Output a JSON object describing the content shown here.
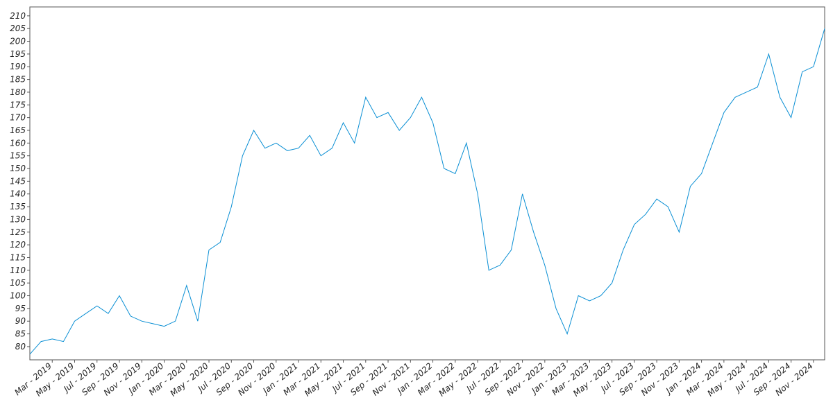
{
  "chart_data": {
    "type": "line",
    "color": "#0a8fd4",
    "x": [
      "2019-01",
      "2019-02",
      "2019-03",
      "2019-04",
      "2019-05",
      "2019-06",
      "2019-07",
      "2019-08",
      "2019-09",
      "2019-10",
      "2019-11",
      "2019-12",
      "2020-01",
      "2020-02",
      "2020-03",
      "2020-04",
      "2020-05",
      "2020-06",
      "2020-07",
      "2020-08",
      "2020-09",
      "2020-10",
      "2020-11",
      "2020-12",
      "2021-01",
      "2021-02",
      "2021-03",
      "2021-04",
      "2021-05",
      "2021-06",
      "2021-07",
      "2021-08",
      "2021-09",
      "2021-10",
      "2021-11",
      "2021-12",
      "2022-01",
      "2022-02",
      "2022-03",
      "2022-04",
      "2022-05",
      "2022-06",
      "2022-07",
      "2022-08",
      "2022-09",
      "2022-10",
      "2022-11",
      "2022-12",
      "2023-01",
      "2023-02",
      "2023-03",
      "2023-04",
      "2023-05",
      "2023-06",
      "2023-07",
      "2023-08",
      "2023-09",
      "2023-10",
      "2023-11",
      "2023-12",
      "2024-01",
      "2024-02",
      "2024-03",
      "2024-04",
      "2024-05",
      "2024-06",
      "2024-07",
      "2024-08",
      "2024-09",
      "2024-10",
      "2024-11",
      "2024-12"
    ],
    "values": [
      77,
      82,
      83,
      82,
      90,
      93,
      96,
      93,
      100,
      92,
      90,
      89,
      88,
      90,
      104,
      90,
      118,
      121,
      135,
      155,
      165,
      158,
      160,
      157,
      158,
      163,
      155,
      158,
      168,
      160,
      178,
      170,
      172,
      165,
      170,
      178,
      168,
      150,
      148,
      160,
      140,
      110,
      112,
      118,
      140,
      125,
      112,
      95,
      85,
      100,
      98,
      100,
      105,
      118,
      128,
      132,
      138,
      135,
      125,
      143,
      148,
      160,
      172,
      178,
      180,
      182,
      195,
      178,
      170,
      188,
      190,
      205
    ],
    "xlim": [
      "2019-01",
      "2024-12"
    ],
    "xticks": [
      {
        "value": "2019-03",
        "label": "Mar - 2019"
      },
      {
        "value": "2019-05",
        "label": "May - 2019"
      },
      {
        "value": "2019-07",
        "label": "Jul - 2019"
      },
      {
        "value": "2019-09",
        "label": "Sep - 2019"
      },
      {
        "value": "2019-11",
        "label": "Nov - 2019"
      },
      {
        "value": "2020-01",
        "label": "Jan - 2020"
      },
      {
        "value": "2020-03",
        "label": "Mar - 2020"
      },
      {
        "value": "2020-05",
        "label": "May - 2020"
      },
      {
        "value": "2020-07",
        "label": "Jul - 2020"
      },
      {
        "value": "2020-09",
        "label": "Sep - 2020"
      },
      {
        "value": "2020-11",
        "label": "Nov - 2020"
      },
      {
        "value": "2021-01",
        "label": "Jan - 2021"
      },
      {
        "value": "2021-03",
        "label": "Mar - 2021"
      },
      {
        "value": "2021-05",
        "label": "May - 2021"
      },
      {
        "value": "2021-07",
        "label": "Jul - 2021"
      },
      {
        "value": "2021-09",
        "label": "Sep - 2021"
      },
      {
        "value": "2021-11",
        "label": "Nov - 2021"
      },
      {
        "value": "2022-01",
        "label": "Jan - 2022"
      },
      {
        "value": "2022-03",
        "label": "Mar - 2022"
      },
      {
        "value": "2022-05",
        "label": "May - 2022"
      },
      {
        "value": "2022-07",
        "label": "Jul - 2022"
      },
      {
        "value": "2022-09",
        "label": "Sep - 2022"
      },
      {
        "value": "2022-11",
        "label": "Nov - 2022"
      },
      {
        "value": "2023-01",
        "label": "Jan - 2023"
      },
      {
        "value": "2023-03",
        "label": "Mar - 2023"
      },
      {
        "value": "2023-05",
        "label": "May - 2023"
      },
      {
        "value": "2023-07",
        "label": "Jul - 2023"
      },
      {
        "value": "2023-09",
        "label": "Sep - 2023"
      },
      {
        "value": "2023-11",
        "label": "Nov - 2023"
      },
      {
        "value": "2024-01",
        "label": "Jan - 2024"
      },
      {
        "value": "2024-03",
        "label": "Mar - 2024"
      },
      {
        "value": "2024-05",
        "label": "May - 2024"
      },
      {
        "value": "2024-07",
        "label": "Jul - 2024"
      },
      {
        "value": "2024-09",
        "label": "Sep - 2024"
      },
      {
        "value": "2024-11",
        "label": "Nov - 2024"
      }
    ],
    "ylim": [
      74.8,
      213.5
    ],
    "yticks": [
      80,
      85,
      90,
      95,
      100,
      105,
      110,
      115,
      120,
      125,
      130,
      135,
      140,
      145,
      150,
      155,
      160,
      165,
      170,
      175,
      180,
      185,
      190,
      195,
      200,
      205,
      210
    ],
    "grid": false
  }
}
